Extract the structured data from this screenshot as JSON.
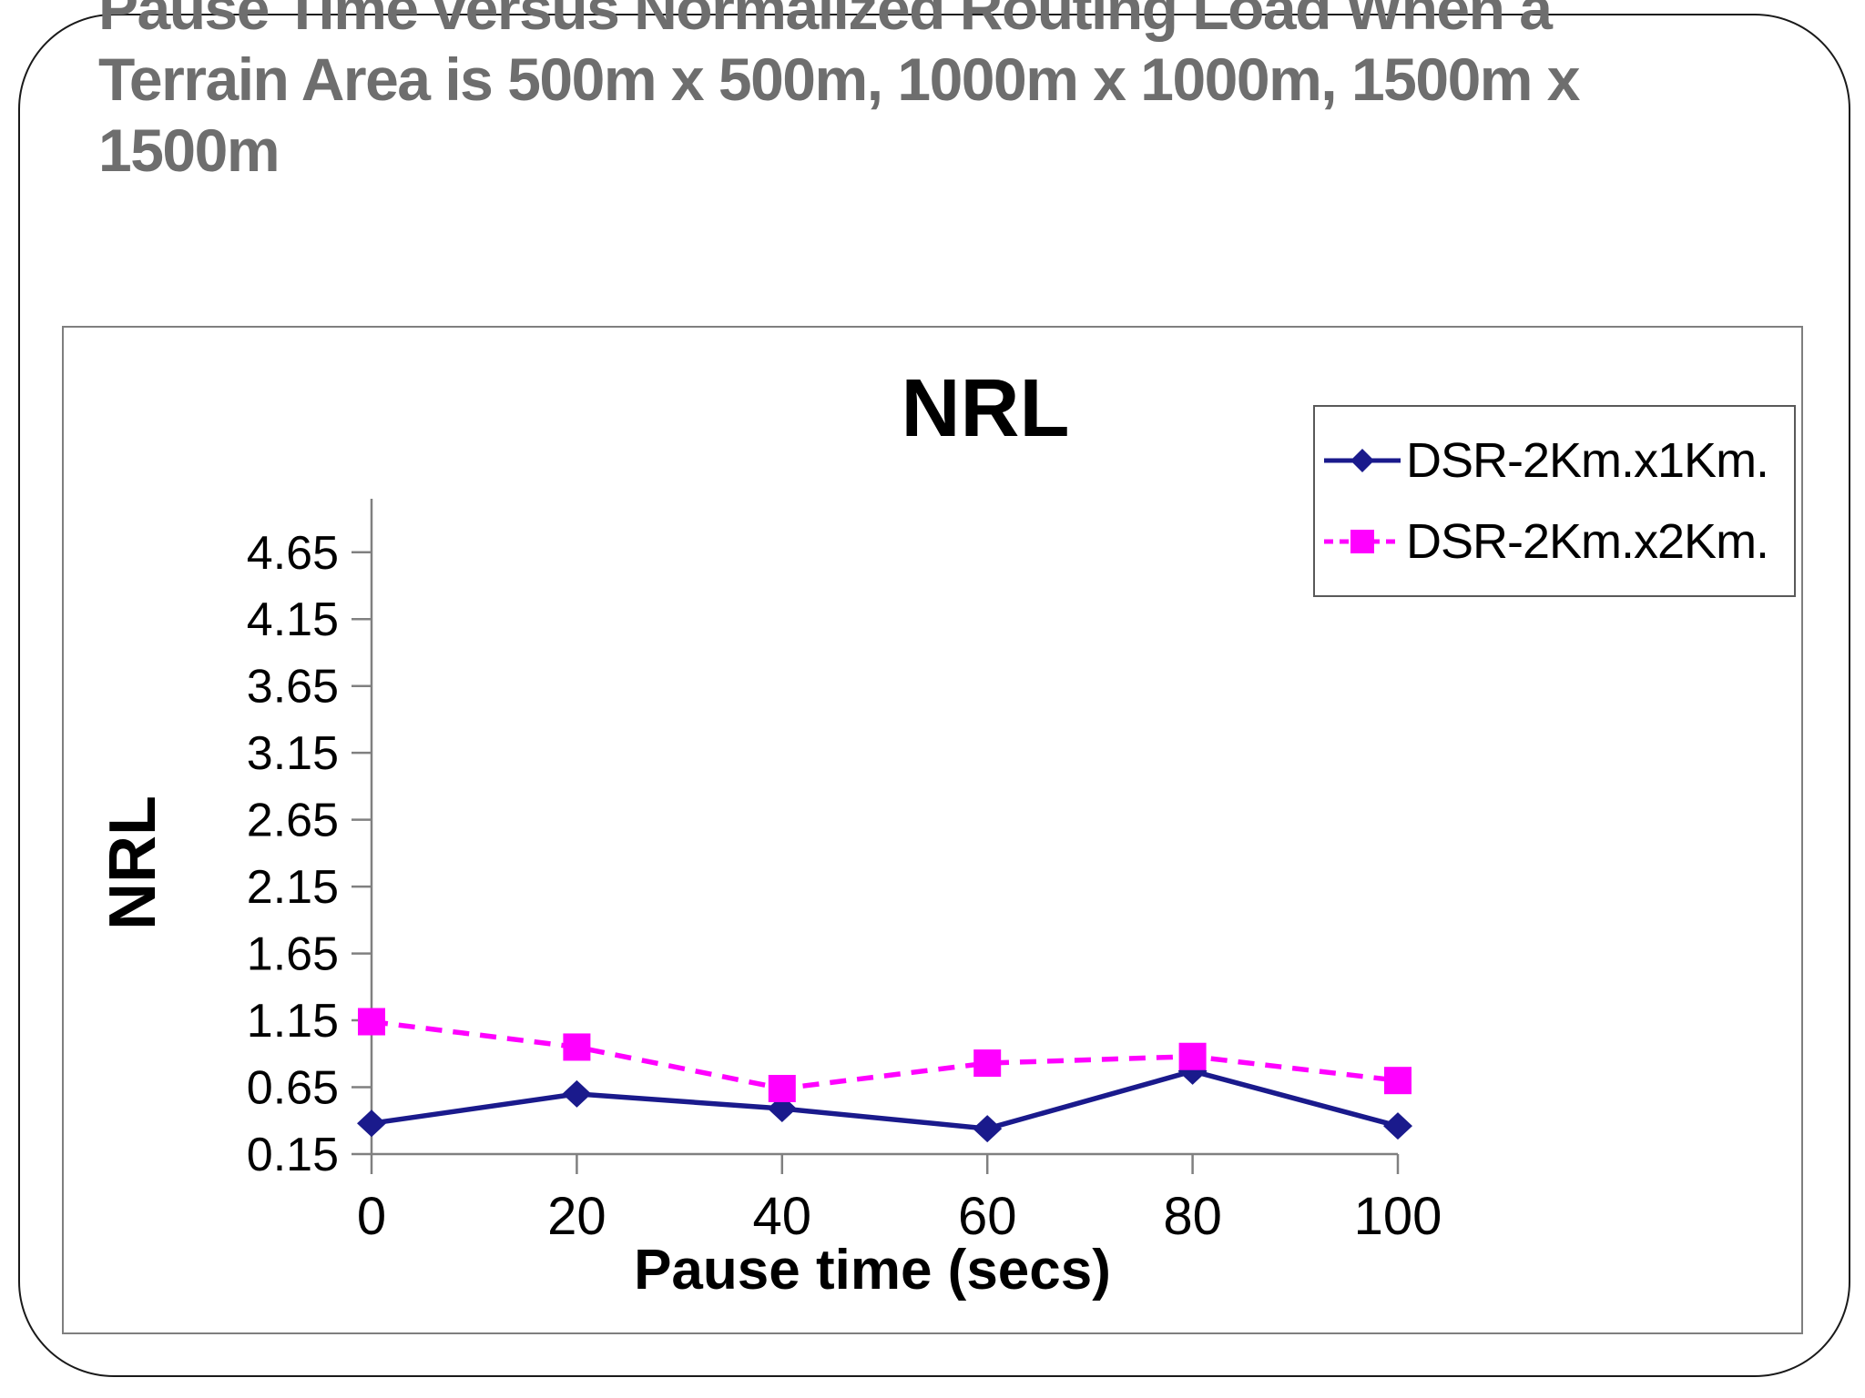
{
  "slide": {
    "title_lines": [
      "Pause Time versus Normalized Routing Load When a",
      "Terrain Area is 500m x 500m, 1000m x 1000m, 1500m x",
      "1500m"
    ]
  },
  "chart_data": {
    "type": "line",
    "title": "NRL",
    "xlabel": "Pause time (secs)",
    "ylabel": "NRL",
    "x": [
      0,
      20,
      40,
      60,
      80,
      100
    ],
    "series": [
      {
        "name": "DSR-2Km.x1Km.",
        "color": "#1a1a8c",
        "marker": "diamond",
        "line": "solid",
        "values": [
          0.38,
          0.6,
          0.49,
          0.34,
          0.77,
          0.36
        ]
      },
      {
        "name": "DSR-2Km.x2Km.",
        "color": "#ff00ff",
        "marker": "square",
        "line": "dashed",
        "values": [
          1.14,
          0.95,
          0.64,
          0.83,
          0.88,
          0.7
        ]
      }
    ],
    "yticks": [
      0.15,
      0.65,
      1.15,
      1.65,
      2.15,
      2.65,
      3.15,
      3.65,
      4.15,
      4.65
    ],
    "ylim": [
      0.15,
      5.05
    ],
    "xlim": [
      0,
      100
    ],
    "grid": false,
    "legend_position": "top-right",
    "axis_color": "#808080"
  }
}
